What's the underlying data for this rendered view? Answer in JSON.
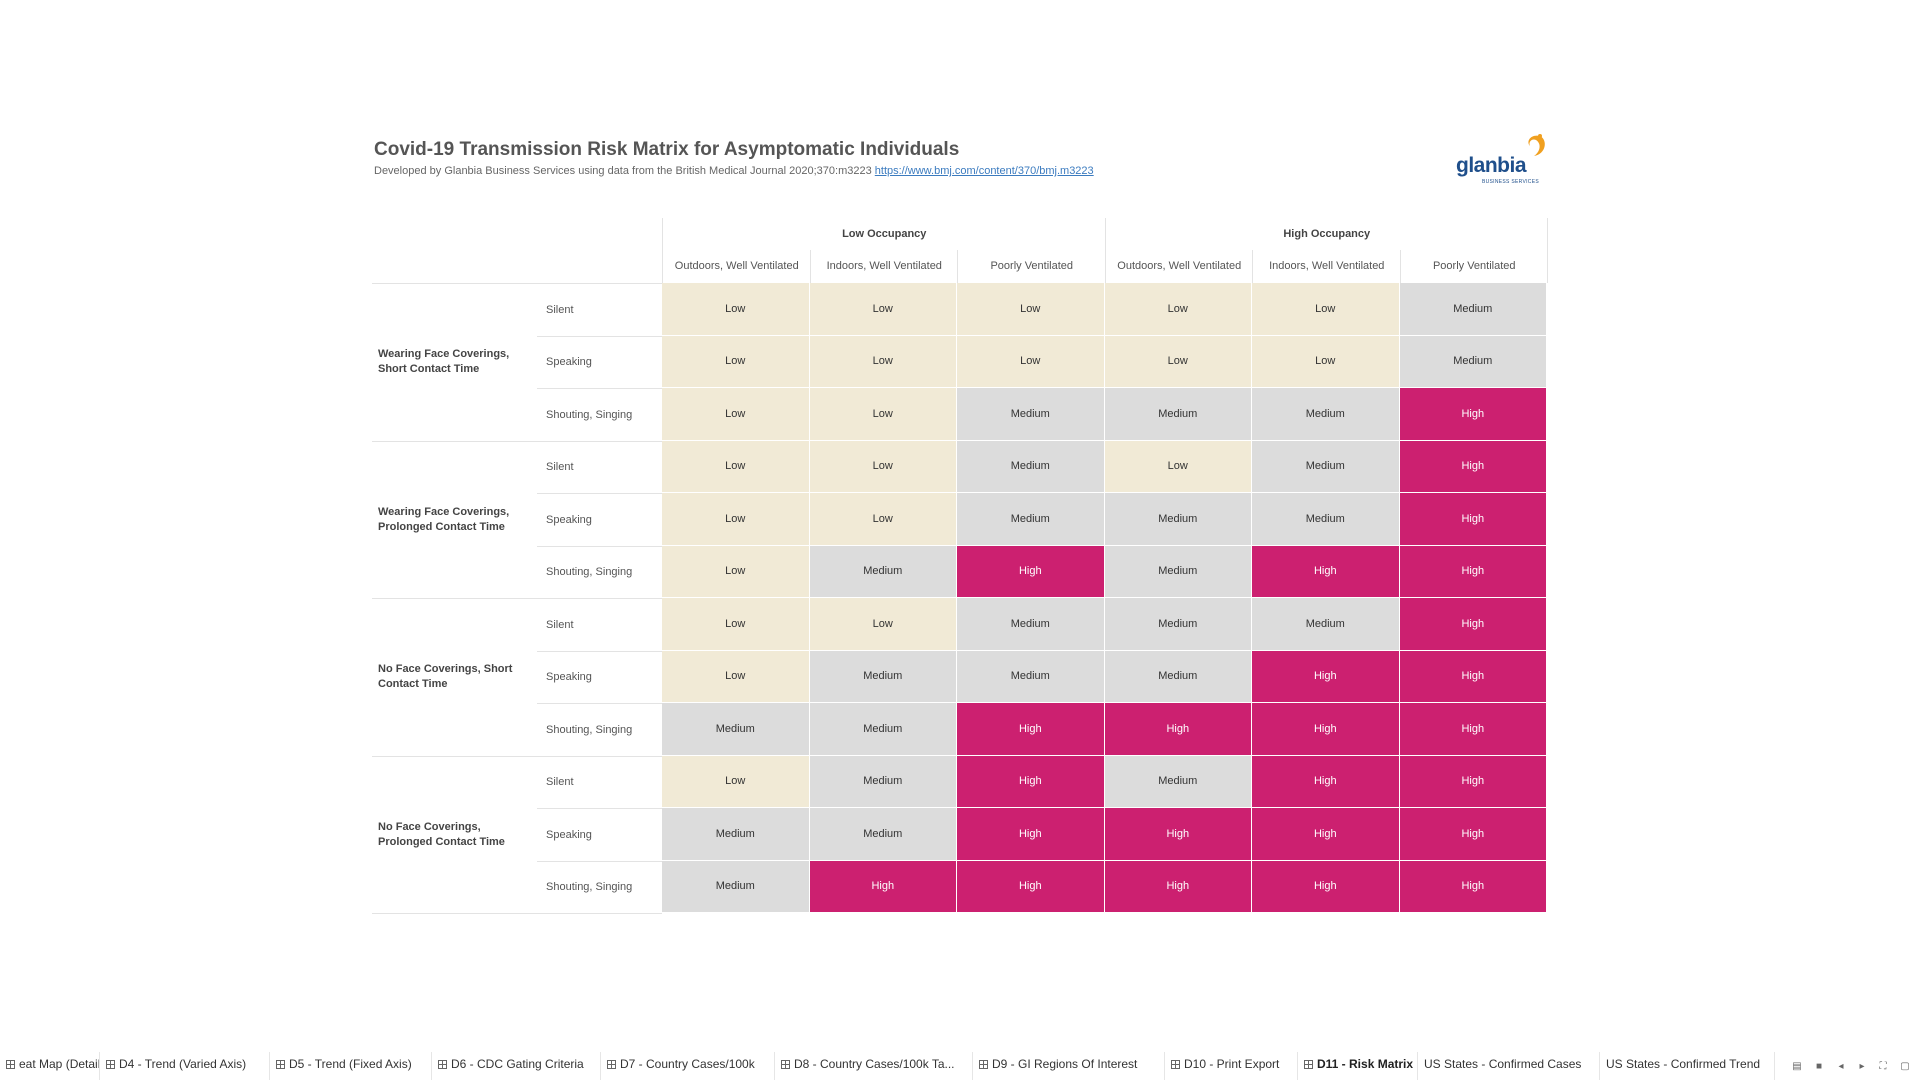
{
  "title": "Covid-19 Transmission Risk Matrix for Asymptomatic Individuals",
  "subtitle": {
    "text": "Developed by Glanbia Business Services using data from the British Medical Journal 2020;370:m3223 ",
    "link": "https://www.bmj.com/content/370/bmj.m3223"
  },
  "logo": {
    "name": "glanbia",
    "sub": "BUSINESS SERVICES"
  },
  "colors": {
    "Low": "#f1ead6",
    "Medium": "#dcdcdc",
    "High": "#cc2070",
    "accent": "#f0a020",
    "brand": "#1f4f8b"
  },
  "matrix": {
    "groups": [
      "Low Occupancy",
      "High Occupancy"
    ],
    "columns": [
      "Outdoors, Well Ventilated",
      "Indoors, Well Ventilated",
      "Poorly Ventilated",
      "Outdoors, Well Ventilated",
      "Indoors, Well Ventilated",
      "Poorly Ventilated"
    ],
    "row_groups": [
      {
        "label": "Wearing Face Coverings, Short Contact Time",
        "rows": [
          {
            "label": "Silent",
            "values": [
              "Low",
              "Low",
              "Low",
              "Low",
              "Low",
              "Medium"
            ]
          },
          {
            "label": "Speaking",
            "values": [
              "Low",
              "Low",
              "Low",
              "Low",
              "Low",
              "Medium"
            ]
          },
          {
            "label": "Shouting, Singing",
            "values": [
              "Low",
              "Low",
              "Medium",
              "Medium",
              "Medium",
              "High"
            ]
          }
        ]
      },
      {
        "label": "Wearing Face Coverings, Prolonged Contact Time",
        "rows": [
          {
            "label": "Silent",
            "values": [
              "Low",
              "Low",
              "Medium",
              "Low",
              "Medium",
              "High"
            ]
          },
          {
            "label": "Speaking",
            "values": [
              "Low",
              "Low",
              "Medium",
              "Medium",
              "Medium",
              "High"
            ]
          },
          {
            "label": "Shouting, Singing",
            "values": [
              "Low",
              "Medium",
              "High",
              "Medium",
              "High",
              "High"
            ]
          }
        ]
      },
      {
        "label": "No Face Coverings, Short Contact Time",
        "rows": [
          {
            "label": "Silent",
            "values": [
              "Low",
              "Low",
              "Medium",
              "Medium",
              "Medium",
              "High"
            ]
          },
          {
            "label": "Speaking",
            "values": [
              "Low",
              "Medium",
              "Medium",
              "Medium",
              "High",
              "High"
            ]
          },
          {
            "label": "Shouting, Singing",
            "values": [
              "Medium",
              "Medium",
              "High",
              "High",
              "High",
              "High"
            ]
          }
        ]
      },
      {
        "label": "No Face Coverings, Prolonged Contact Time",
        "rows": [
          {
            "label": "Silent",
            "values": [
              "Low",
              "Medium",
              "High",
              "Medium",
              "High",
              "High"
            ]
          },
          {
            "label": "Speaking",
            "values": [
              "Medium",
              "Medium",
              "High",
              "High",
              "High",
              "High"
            ]
          },
          {
            "label": "Shouting, Singing",
            "values": [
              "Medium",
              "High",
              "High",
              "High",
              "High",
              "High"
            ]
          }
        ]
      }
    ]
  },
  "tabs": [
    {
      "label": "eat Map (Detail)",
      "icon": "grid-icon",
      "active": false
    },
    {
      "label": "D4 - Trend (Varied Axis)",
      "icon": "grid-icon",
      "active": false
    },
    {
      "label": "D5 - Trend (Fixed Axis)",
      "icon": "grid-icon",
      "active": false
    },
    {
      "label": "D6 - CDC Gating Criteria",
      "icon": "grid-icon",
      "active": false
    },
    {
      "label": "D7 - Country Cases/100k",
      "icon": "grid-icon",
      "active": false
    },
    {
      "label": "D8 - Country Cases/100k Ta...",
      "icon": "grid-icon",
      "active": false
    },
    {
      "label": "D9 - GI Regions Of Interest",
      "icon": "grid-icon",
      "active": false
    },
    {
      "label": "D10 - Print Export",
      "icon": "grid-icon",
      "active": false
    },
    {
      "label": "D11 - Risk Matrix",
      "icon": "grid-icon",
      "active": true
    },
    {
      "label": "US States - Confirmed Cases",
      "icon": "",
      "active": false
    },
    {
      "label": "US States - Confirmed Trend",
      "icon": "",
      "active": false
    }
  ],
  "nav_icons": [
    "filmstrip-icon",
    "single-sheet-icon",
    "prev-sheet-icon",
    "next-sheet-icon",
    "fullscreen-icon",
    "present-icon"
  ]
}
